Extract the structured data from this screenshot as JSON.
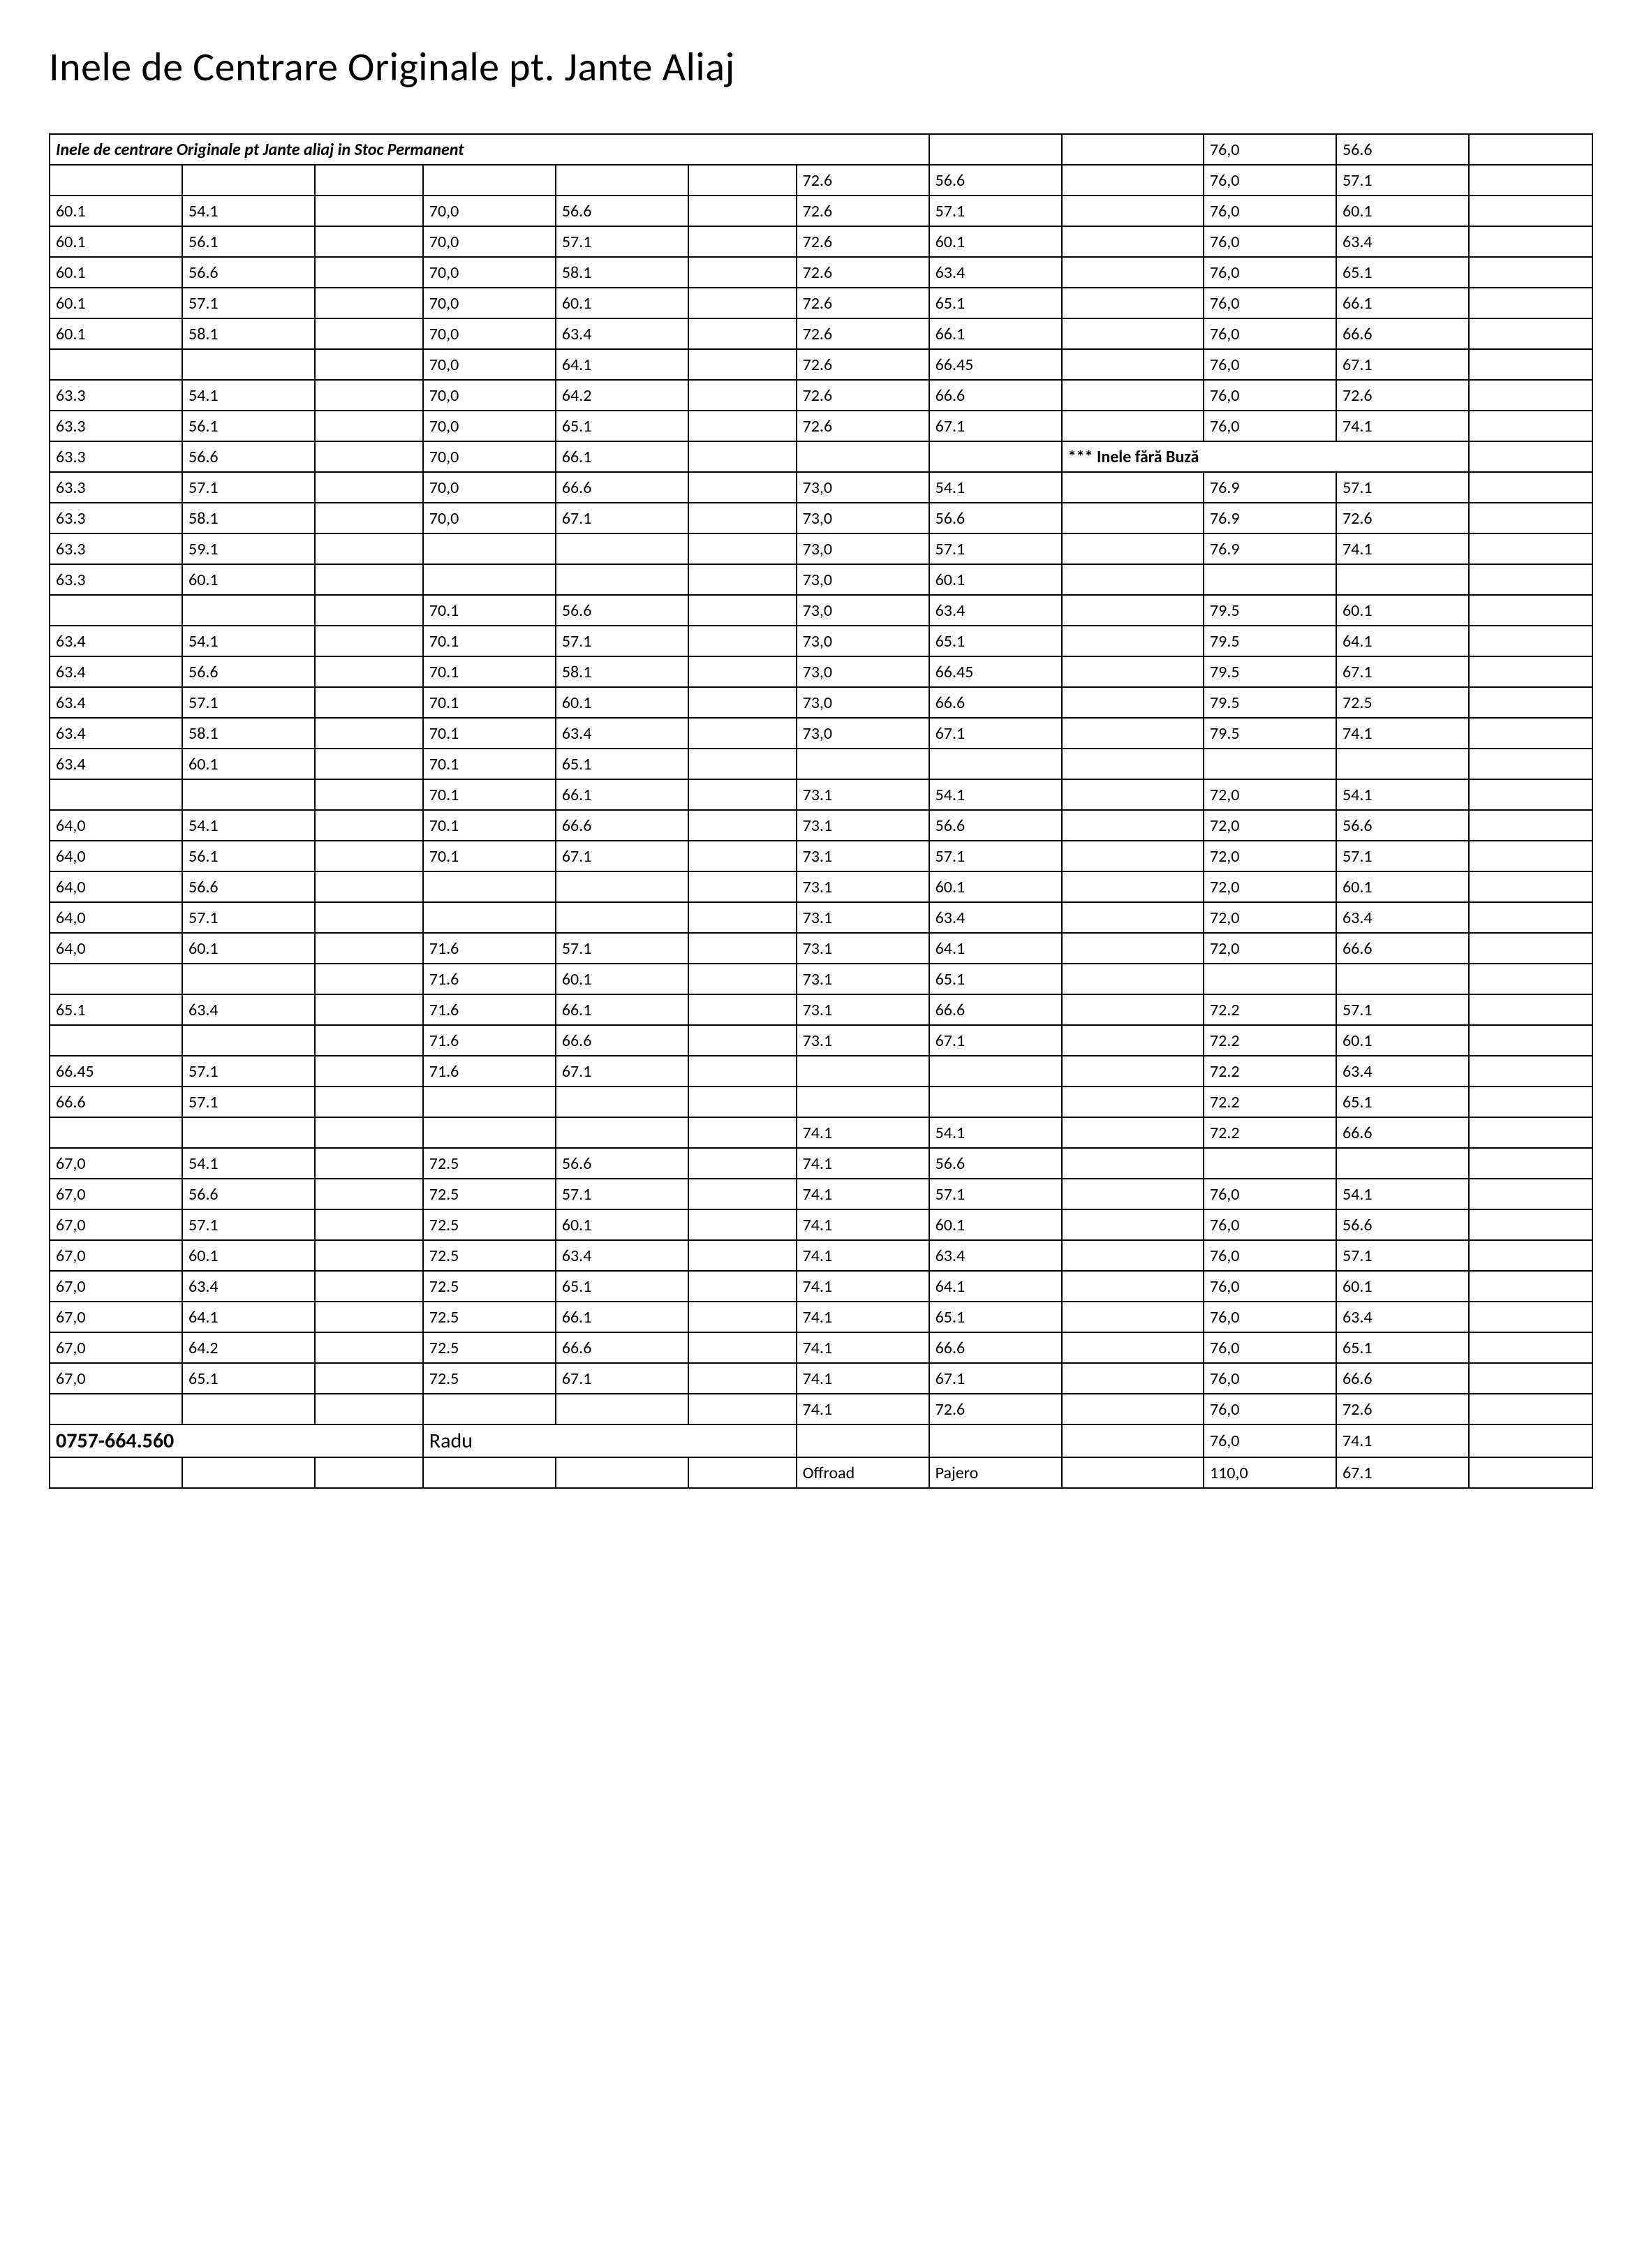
{
  "page_title": "Inele de Centrare Originale pt. Jante Aliaj",
  "table_header": "Inele de centrare  Originale pt Jante aliaj in Stoc Permanent",
  "note_inel": "*** Inele fără Buză",
  "phone": "0757-664.560",
  "name": "Radu",
  "offroad": "Offroad",
  "pajero": "Pajero",
  "col_widths_pct": [
    8.6,
    8.6,
    7.0,
    8.6,
    8.6,
    7.0,
    8.6,
    8.6,
    9.2,
    8.6,
    8.6,
    8.0
  ],
  "rows": [
    [
      "_HDR7",
      "",
      "",
      "",
      "",
      "",
      "",
      "",
      "",
      "76,0",
      "56.6",
      ""
    ],
    [
      "",
      "",
      "",
      "",
      "",
      "",
      "72.6",
      "56.6",
      "",
      "76,0",
      "57.1",
      ""
    ],
    [
      "60.1",
      "54.1",
      "",
      "70,0",
      "56.6",
      "",
      "72.6",
      "57.1",
      "",
      "76,0",
      "60.1",
      ""
    ],
    [
      "60.1",
      "56.1",
      "",
      "70,0",
      "57.1",
      "",
      "72.6",
      "60.1",
      "",
      "76,0",
      "63.4",
      ""
    ],
    [
      "60.1",
      "56.6",
      "",
      "70,0",
      "58.1",
      "",
      "72.6",
      "63.4",
      "",
      "76,0",
      "65.1",
      ""
    ],
    [
      "60.1",
      "57.1",
      "",
      "70,0",
      "60.1",
      "",
      "72.6",
      "65.1",
      "",
      "76,0",
      "66.1",
      ""
    ],
    [
      "60.1",
      "58.1",
      "",
      "70,0",
      "63.4",
      "",
      "72.6",
      "66.1",
      "",
      "76,0",
      "66.6",
      ""
    ],
    [
      "",
      "",
      "",
      "70,0",
      "64.1",
      "",
      "72.6",
      "66.45",
      "",
      "76,0",
      "67.1",
      ""
    ],
    [
      "63.3",
      "54.1",
      "",
      "70,0",
      "64.2",
      "",
      "72.6",
      "66.6",
      "",
      "76,0",
      "72.6",
      ""
    ],
    [
      "63.3",
      "56.1",
      "",
      "70,0",
      "65.1",
      "",
      "72.6",
      "67.1",
      "",
      "76,0",
      "74.1",
      ""
    ],
    [
      "63.3",
      "56.6",
      "",
      "70,0",
      "66.1",
      "",
      "",
      "",
      "_NOTE3",
      "",
      "",
      ""
    ],
    [
      "63.3",
      "57.1",
      "",
      "70,0",
      "66.6",
      "",
      "73,0",
      "54.1",
      "",
      "76.9",
      "57.1",
      ""
    ],
    [
      "63.3",
      "58.1",
      "",
      "70,0",
      "67.1",
      "",
      "73,0",
      "56.6",
      "",
      "76.9",
      "72.6",
      ""
    ],
    [
      "63.3",
      "59.1",
      "",
      "",
      "",
      "",
      "73,0",
      "57.1",
      "",
      "76.9",
      "74.1",
      ""
    ],
    [
      "63.3",
      "60.1",
      "",
      "",
      "",
      "",
      "73,0",
      "60.1",
      "",
      "",
      "",
      ""
    ],
    [
      "",
      "",
      "",
      "70.1",
      "56.6",
      "",
      "73,0",
      "63.4",
      "",
      "79.5",
      "60.1",
      ""
    ],
    [
      "63.4",
      "54.1",
      "",
      "70.1",
      "57.1",
      "",
      "73,0",
      "65.1",
      "",
      "79.5",
      "64.1",
      ""
    ],
    [
      "63.4",
      "56.6",
      "",
      "70.1",
      "58.1",
      "",
      "73,0",
      "66.45",
      "",
      "79.5",
      "67.1",
      ""
    ],
    [
      "63.4",
      "57.1",
      "",
      "70.1",
      "60.1",
      "",
      "73,0",
      "66.6",
      "",
      "79.5",
      "72.5",
      ""
    ],
    [
      "63.4",
      "58.1",
      "",
      "70.1",
      "63.4",
      "",
      "73,0",
      "67.1",
      "",
      "79.5",
      "74.1",
      ""
    ],
    [
      "63.4",
      "60.1",
      "",
      "70.1",
      "65.1",
      "",
      "",
      "",
      "",
      "",
      "",
      ""
    ],
    [
      "",
      "",
      "",
      "70.1",
      "66.1",
      "",
      "73.1",
      "54.1",
      "",
      "72,0",
      "54.1",
      ""
    ],
    [
      "64,0",
      "54.1",
      "",
      "70.1",
      "66.6",
      "",
      "73.1",
      "56.6",
      "",
      "72,0",
      "56.6",
      ""
    ],
    [
      "64,0",
      "56.1",
      "",
      "70.1",
      "67.1",
      "",
      "73.1",
      "57.1",
      "",
      "72,0",
      "57.1",
      ""
    ],
    [
      "64,0",
      "56.6",
      "",
      "",
      "",
      "",
      "73.1",
      "60.1",
      "",
      "72,0",
      "60.1",
      ""
    ],
    [
      "64,0",
      "57.1",
      "",
      "",
      "",
      "",
      "73.1",
      "63.4",
      "",
      "72,0",
      "63.4",
      ""
    ],
    [
      "64,0",
      "60.1",
      "",
      "71.6",
      "57.1",
      "",
      "73.1",
      "64.1",
      "",
      "72,0",
      "66.6",
      ""
    ],
    [
      "",
      "",
      "",
      "71.6",
      "60.1",
      "",
      "73.1",
      "65.1",
      "",
      "",
      "",
      ""
    ],
    [
      "65.1",
      "63.4",
      "",
      "71.6",
      "66.1",
      "",
      "73.1",
      "66.6",
      "",
      "72.2",
      "57.1",
      ""
    ],
    [
      "",
      "",
      "",
      "71.6",
      "66.6",
      "",
      "73.1",
      "67.1",
      "",
      "72.2",
      "60.1",
      ""
    ],
    [
      "66.45",
      "57.1",
      "",
      "71.6",
      "67.1",
      "",
      "",
      "",
      "",
      "72.2",
      "63.4",
      ""
    ],
    [
      "66.6",
      "57.1",
      "",
      "",
      "",
      "",
      "",
      "",
      "",
      "72.2",
      "65.1",
      ""
    ],
    [
      "",
      "",
      "",
      "",
      "",
      "",
      "74.1",
      "54.1",
      "",
      "72.2",
      "66.6",
      ""
    ],
    [
      "67,0",
      "54.1",
      "",
      "72.5",
      "56.6",
      "",
      "74.1",
      "56.6",
      "",
      "",
      "",
      ""
    ],
    [
      "67,0",
      "56.6",
      "",
      "72.5",
      "57.1",
      "",
      "74.1",
      "57.1",
      "",
      "76,0",
      "54.1",
      ""
    ],
    [
      "67,0",
      "57.1",
      "",
      "72.5",
      "60.1",
      "",
      "74.1",
      "60.1",
      "",
      "76,0",
      "56.6",
      ""
    ],
    [
      "67,0",
      "60.1",
      "",
      "72.5",
      "63.4",
      "",
      "74.1",
      "63.4",
      "",
      "76,0",
      "57.1",
      ""
    ],
    [
      "67,0",
      "63.4",
      "",
      "72.5",
      "65.1",
      "",
      "74.1",
      "64.1",
      "",
      "76,0",
      "60.1",
      ""
    ],
    [
      "67,0",
      "64.1",
      "",
      "72.5",
      "66.1",
      "",
      "74.1",
      "65.1",
      "",
      "76,0",
      "63.4",
      ""
    ],
    [
      "67,0",
      "64.2",
      "",
      "72.5",
      "66.6",
      "",
      "74.1",
      "66.6",
      "",
      "76,0",
      "65.1",
      ""
    ],
    [
      "67,0",
      "65.1",
      "",
      "72.5",
      "67.1",
      "",
      "74.1",
      "67.1",
      "",
      "76,0",
      "66.6",
      ""
    ],
    [
      "",
      "",
      "",
      "",
      "",
      "",
      "74.1",
      "72.6",
      "",
      "76,0",
      "72.6",
      ""
    ],
    [
      "_PHONE3",
      "",
      "",
      "_NAME3",
      "",
      "",
      "",
      "",
      "",
      "76,0",
      "74.1",
      ""
    ],
    [
      "",
      "",
      "",
      "",
      "",
      "",
      "_OFFROAD",
      "_PAJERO",
      "",
      "110,0",
      "67.1",
      ""
    ]
  ]
}
